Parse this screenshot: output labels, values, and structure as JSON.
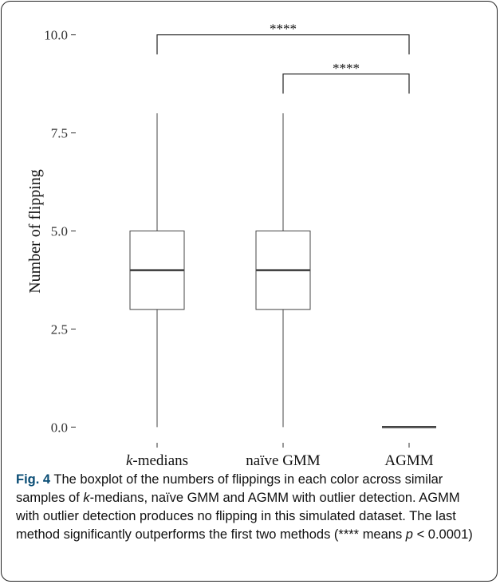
{
  "chart_data": {
    "type": "boxplot",
    "ylabel": "Number of flipping",
    "xlabel": "",
    "ylim": [
      -0.4,
      10.4
    ],
    "yticks": [
      0.0,
      2.5,
      5.0,
      7.5,
      10.0
    ],
    "ytick_labels": [
      "0.0",
      "2.5",
      "5.0",
      "7.5",
      "10.0"
    ],
    "categories": [
      {
        "label_italic": "k",
        "label_rest": "-medians"
      },
      {
        "label_italic": "",
        "label_rest": "naïve GMM"
      },
      {
        "label_italic": "",
        "label_rest": "AGMM"
      }
    ],
    "boxes": [
      {
        "min": 0,
        "q1": 3,
        "median": 4,
        "q3": 5,
        "max": 8
      },
      {
        "min": 0,
        "q1": 3,
        "median": 4,
        "q3": 5,
        "max": 8
      },
      {
        "min": 0,
        "q1": 0,
        "median": 0,
        "q3": 0,
        "max": 0
      }
    ],
    "significance": [
      {
        "from": 0,
        "to": 2,
        "y": 10.0,
        "drop": 0.5,
        "label": "****"
      },
      {
        "from": 1,
        "to": 2,
        "y": 9.0,
        "drop": 0.5,
        "label": "****"
      }
    ]
  },
  "caption": {
    "fig_label": "Fig. 4",
    "text_1": " The boxplot of the numbers of flippings in each color across similar samples of ",
    "text_k": "k",
    "text_2": "-medians, naïve GMM and AGMM with outlier detection. AGMM with outlier detection produces no flipping in this simulated dataset. The last method significantly outperforms the first two methods (**** means ",
    "text_p": "p",
    "text_3": " < 0.0001)"
  }
}
